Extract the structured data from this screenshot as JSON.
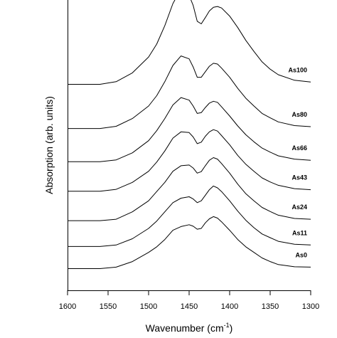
{
  "chart_data": {
    "type": "line",
    "xlabel": "Wavenumber (cm",
    "xlabel_sup": "-1",
    "xlabel_end": ")",
    "ylabel": "Absorption (arb. units)",
    "xlim": [
      1600,
      1300
    ],
    "x_reversed": true,
    "xticks": [
      1600,
      1550,
      1500,
      1450,
      1400,
      1350,
      1300
    ],
    "y_tick_labels": false,
    "series": [
      {
        "name": "As0",
        "offset": 0.0,
        "x": [
          1600,
          1580,
          1560,
          1540,
          1520,
          1500,
          1490,
          1480,
          1470,
          1460,
          1450,
          1445,
          1440,
          1435,
          1430,
          1425,
          1420,
          1415,
          1410,
          1400,
          1390,
          1380,
          1370,
          1360,
          1350,
          1340,
          1320,
          1300
        ],
        "values": [
          0.01,
          0.01,
          0.01,
          0.05,
          0.2,
          0.45,
          0.6,
          0.8,
          1.05,
          1.15,
          1.2,
          1.16,
          1.08,
          1.1,
          1.25,
          1.36,
          1.42,
          1.38,
          1.28,
          1.05,
          0.8,
          0.6,
          0.45,
          0.3,
          0.2,
          0.12,
          0.06,
          0.05
        ]
      },
      {
        "name": "As11",
        "offset": 0.6,
        "x": [
          1600,
          1580,
          1560,
          1540,
          1520,
          1500,
          1490,
          1480,
          1470,
          1460,
          1450,
          1445,
          1440,
          1435,
          1430,
          1425,
          1420,
          1415,
          1410,
          1400,
          1390,
          1380,
          1370,
          1360,
          1350,
          1340,
          1320,
          1300
        ],
        "values": [
          0.01,
          0.01,
          0.01,
          0.05,
          0.22,
          0.5,
          0.7,
          0.95,
          1.2,
          1.32,
          1.36,
          1.3,
          1.2,
          1.25,
          1.4,
          1.55,
          1.65,
          1.6,
          1.5,
          1.25,
          0.97,
          0.72,
          0.52,
          0.35,
          0.25,
          0.15,
          0.07,
          0.05
        ]
      },
      {
        "name": "As24",
        "offset": 1.3,
        "x": [
          1600,
          1580,
          1560,
          1540,
          1520,
          1500,
          1490,
          1480,
          1470,
          1460,
          1450,
          1445,
          1440,
          1435,
          1430,
          1425,
          1420,
          1415,
          1410,
          1400,
          1390,
          1380,
          1370,
          1360,
          1350,
          1340,
          1320,
          1300
        ],
        "values": [
          0.01,
          0.01,
          0.01,
          0.05,
          0.25,
          0.55,
          0.8,
          1.05,
          1.35,
          1.5,
          1.52,
          1.44,
          1.3,
          1.34,
          1.5,
          1.65,
          1.72,
          1.68,
          1.56,
          1.3,
          1.0,
          0.74,
          0.55,
          0.37,
          0.26,
          0.16,
          0.07,
          0.05
        ]
      },
      {
        "name": "As43",
        "offset": 2.1,
        "x": [
          1600,
          1580,
          1560,
          1540,
          1520,
          1500,
          1490,
          1480,
          1470,
          1460,
          1450,
          1445,
          1440,
          1435,
          1430,
          1425,
          1420,
          1415,
          1410,
          1400,
          1390,
          1380,
          1370,
          1360,
          1350,
          1340,
          1320,
          1300
        ],
        "values": [
          0.01,
          0.01,
          0.01,
          0.06,
          0.25,
          0.55,
          0.8,
          1.1,
          1.45,
          1.62,
          1.6,
          1.48,
          1.3,
          1.34,
          1.5,
          1.62,
          1.68,
          1.64,
          1.52,
          1.27,
          0.98,
          0.74,
          0.55,
          0.37,
          0.26,
          0.17,
          0.08,
          0.05
        ]
      },
      {
        "name": "As66",
        "offset": 2.9,
        "x": [
          1600,
          1580,
          1560,
          1540,
          1520,
          1500,
          1490,
          1480,
          1470,
          1460,
          1450,
          1445,
          1440,
          1435,
          1430,
          1425,
          1420,
          1415,
          1410,
          1400,
          1390,
          1380,
          1370,
          1360,
          1350,
          1340,
          1320,
          1300
        ],
        "values": [
          0.01,
          0.01,
          0.01,
          0.06,
          0.25,
          0.58,
          0.85,
          1.18,
          1.55,
          1.75,
          1.68,
          1.52,
          1.32,
          1.34,
          1.48,
          1.6,
          1.65,
          1.62,
          1.5,
          1.25,
          0.98,
          0.74,
          0.55,
          0.38,
          0.27,
          0.17,
          0.08,
          0.05
        ]
      },
      {
        "name": "As80",
        "offset": 3.8,
        "x": [
          1600,
          1580,
          1560,
          1540,
          1520,
          1500,
          1490,
          1480,
          1470,
          1460,
          1450,
          1445,
          1440,
          1435,
          1430,
          1425,
          1420,
          1415,
          1410,
          1400,
          1390,
          1380,
          1370,
          1360,
          1350,
          1340,
          1320,
          1300
        ],
        "values": [
          0.01,
          0.01,
          0.01,
          0.07,
          0.28,
          0.62,
          0.9,
          1.28,
          1.72,
          1.98,
          1.9,
          1.68,
          1.4,
          1.4,
          1.55,
          1.7,
          1.78,
          1.76,
          1.65,
          1.4,
          1.1,
          0.83,
          0.62,
          0.42,
          0.3,
          0.19,
          0.09,
          0.06
        ]
      },
      {
        "name": "As100",
        "offset": 5.0,
        "x": [
          1600,
          1580,
          1560,
          1540,
          1520,
          1500,
          1490,
          1480,
          1470,
          1460,
          1450,
          1445,
          1440,
          1435,
          1430,
          1425,
          1420,
          1415,
          1410,
          1400,
          1390,
          1380,
          1370,
          1360,
          1350,
          1340,
          1320,
          1300
        ],
        "values": [
          0.01,
          0.01,
          0.01,
          0.08,
          0.32,
          0.75,
          1.1,
          1.6,
          2.2,
          2.6,
          2.42,
          2.15,
          1.72,
          1.65,
          1.82,
          2.0,
          2.1,
          2.12,
          2.08,
          1.86,
          1.55,
          1.2,
          0.9,
          0.62,
          0.42,
          0.27,
          0.12,
          0.07
        ]
      }
    ]
  }
}
